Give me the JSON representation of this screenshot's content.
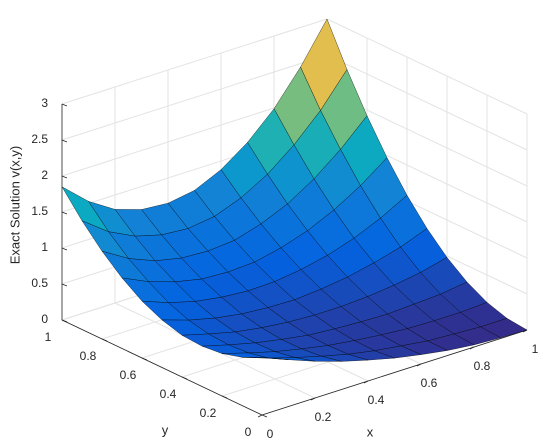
{
  "chart_data": {
    "type": "surface",
    "xlabel": "x",
    "ylabel": "y",
    "zlabel": "Exact Solution v(x,y)",
    "colormap": "parula",
    "grid": true,
    "x": [
      0,
      0.1,
      0.2,
      0.3,
      0.4,
      0.5,
      0.6,
      0.7,
      0.8,
      0.9,
      1
    ],
    "y": [
      0,
      0.1,
      0.2,
      0.3,
      0.4,
      0.5,
      0.6,
      0.7,
      0.8,
      0.9,
      1
    ],
    "z": [
      [
        0.8,
        0.65,
        0.51,
        0.39,
        0.29,
        0.2,
        0.13,
        0.07,
        0.03,
        0.01,
        0
      ],
      [
        0.67,
        0.54,
        0.43,
        0.33,
        0.24,
        0.17,
        0.12,
        0.07,
        0.05,
        0.03,
        0.03
      ],
      [
        0.59,
        0.48,
        0.38,
        0.3,
        0.23,
        0.18,
        0.14,
        0.11,
        0.1,
        0.1,
        0.12
      ],
      [
        0.56,
        0.46,
        0.37,
        0.3,
        0.24,
        0.21,
        0.19,
        0.18,
        0.2,
        0.22,
        0.27
      ],
      [
        0.58,
        0.48,
        0.39,
        0.33,
        0.29,
        0.27,
        0.27,
        0.29,
        0.33,
        0.39,
        0.48
      ],
      [
        0.66,
        0.54,
        0.45,
        0.39,
        0.36,
        0.35,
        0.38,
        0.43,
        0.51,
        0.61,
        0.75
      ],
      [
        0.79,
        0.65,
        0.55,
        0.49,
        0.46,
        0.47,
        0.52,
        0.6,
        0.72,
        0.88,
        1.08
      ],
      [
        0.98,
        0.81,
        0.69,
        0.61,
        0.59,
        0.61,
        0.69,
        0.81,
        0.98,
        1.2,
        1.47
      ],
      [
        1.22,
        1.0,
        0.85,
        0.77,
        0.75,
        0.78,
        0.89,
        1.05,
        1.28,
        1.57,
        1.92
      ],
      [
        1.51,
        1.24,
        1.06,
        0.96,
        0.93,
        0.98,
        1.12,
        1.33,
        1.62,
        1.98,
        2.43
      ],
      [
        1.85,
        1.53,
        1.3,
        1.18,
        1.15,
        1.21,
        1.38,
        1.64,
        1.99,
        2.45,
        3
      ]
    ],
    "xlim": [
      0,
      1
    ],
    "ylim": [
      0,
      1
    ],
    "zlim": [
      0,
      3
    ],
    "xticks": [
      0,
      0.2,
      0.4,
      0.6,
      0.8,
      1
    ],
    "yticks": [
      0,
      0.2,
      0.4,
      0.6,
      0.8,
      1
    ],
    "zticks": [
      0,
      0.5,
      1,
      1.5,
      2,
      2.5,
      3
    ]
  }
}
